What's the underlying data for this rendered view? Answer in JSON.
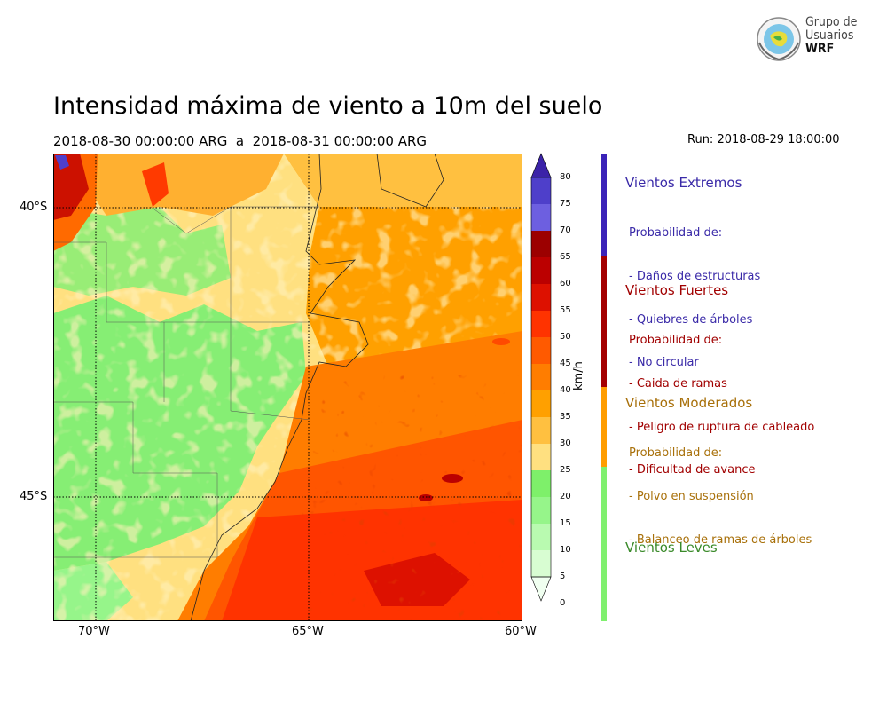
{
  "title": "Intensidad máxima de viento a 10m del suelo",
  "subtitle": "2018-08-30 00:00:00 ARG  a  2018-08-31 00:00:00 ARG",
  "run": "Run: 2018-08-29 18:00:00",
  "logo": {
    "line1": "Grupo de",
    "line2": "Usuarios",
    "line3": "WRF"
  },
  "map": {
    "x_ticks": [
      "70°W",
      "65°W",
      "60°W"
    ],
    "y_ticks": [
      "40°S",
      "45°S"
    ]
  },
  "colorbar": {
    "units": "km/h",
    "ticks": [
      "80",
      "75",
      "70",
      "65",
      "60",
      "55",
      "50",
      "45",
      "40",
      "35",
      "30",
      "25",
      "20",
      "15",
      "10",
      "5",
      "0"
    ],
    "colors": [
      "#3b23a8",
      "#4e3fca",
      "#6d5fe0",
      "#9c0000",
      "#bb0000",
      "#dd1100",
      "#ff3300",
      "#ff5a00",
      "#ff7d00",
      "#ffa000",
      "#ffc040",
      "#ffe080",
      "#7ef06a",
      "#96f58a",
      "#b9fab0",
      "#d8fdd2",
      "#f0fff0"
    ]
  },
  "categories": [
    {
      "title": "Vientos Extremos",
      "color": "#3a2aa8",
      "lines": [
        "Probabilidad de:",
        "- Daños de estructuras",
        "- Quiebres de árboles",
        "- No circular"
      ]
    },
    {
      "title": "Vientos Fuertes",
      "color": "#a10000",
      "lines": [
        "Probabilidad de:",
        "- Caida de ramas",
        "- Peligro de ruptura de cableado",
        "- Dificultad de avance"
      ]
    },
    {
      "title": "Vientos Moderados",
      "color": "#a8700a",
      "lines": [
        "Probabilidad de:",
        "- Polvo en suspensión",
        "- Balanceo de ramas de árboles"
      ]
    },
    {
      "title": "Vientos Leves",
      "color": "#3a8a2a",
      "lines": []
    }
  ],
  "category_bar_colors": [
    "#3b23b8",
    "#a40000",
    "#ff9d00",
    "#7ff06e"
  ]
}
